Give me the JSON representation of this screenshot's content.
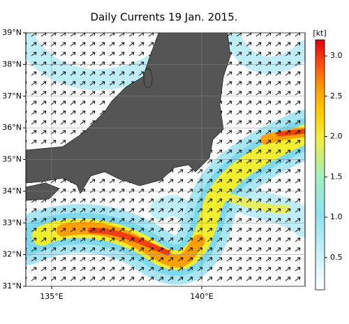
{
  "map": {
    "title": "Daily Currents 19 Jan. 2015.",
    "lonlim": [
      134.14,
      143.44
    ],
    "latlim": [
      31,
      39
    ],
    "lat_ticks": [
      {
        "value": 31,
        "label": "31°N"
      },
      {
        "value": 32,
        "label": "32°N"
      },
      {
        "value": 33,
        "label": "33°N"
      },
      {
        "value": 34,
        "label": "34°N"
      },
      {
        "value": 35,
        "label": "35°N"
      },
      {
        "value": 36,
        "label": "36°N"
      },
      {
        "value": 37,
        "label": "37°N"
      },
      {
        "value": 38,
        "label": "38°N"
      },
      {
        "value": 39,
        "label": "39°N"
      }
    ],
    "lon_ticks": [
      {
        "value": 135,
        "label": "135°E"
      },
      {
        "value": 140,
        "label": "140°E"
      }
    ],
    "colorbar": {
      "unit": "[kt]",
      "lim": [
        0.1,
        3.2
      ],
      "ticks": [
        0.5,
        {
          "value": 1,
          "label": "1.0"
        },
        1.5,
        {
          "value": 2,
          "label": "2.0"
        },
        2.5,
        {
          "value": 3,
          "label": "3.0"
        }
      ]
    }
  }
}
